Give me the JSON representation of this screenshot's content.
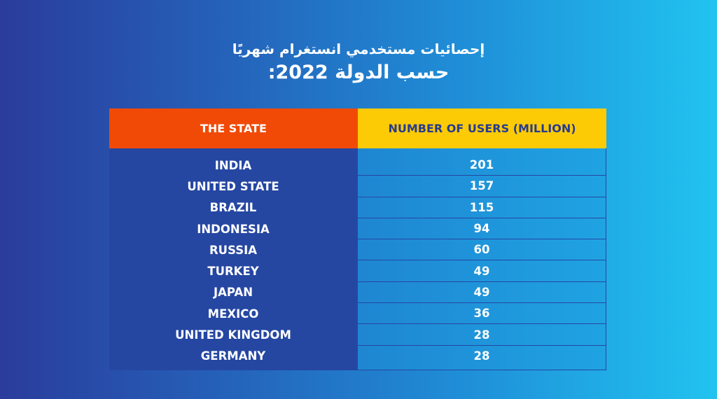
{
  "title": {
    "line1": "إحصائيات مستخدمي انستغرام شهريًا",
    "line2": "حسب الدولة 2022:"
  },
  "colors": {
    "header_left": "#f04a06",
    "header_right": "#fccb05",
    "left_column": "#2547a2",
    "right_column": "#1f95da"
  },
  "chart_data": {
    "type": "table",
    "columns": [
      "THE STATE",
      "NUMBER OF USERS (MILLION)"
    ],
    "rows": [
      [
        "INDIA",
        201
      ],
      [
        "UNITED STATE",
        157
      ],
      [
        "BRAZIL",
        115
      ],
      [
        "INDONESIA",
        94
      ],
      [
        "RUSSIA",
        60
      ],
      [
        "TURKEY",
        49
      ],
      [
        "JAPAN",
        49
      ],
      [
        "MEXICO",
        36
      ],
      [
        "UNITED KINGDOM",
        28
      ],
      [
        "GERMANY",
        28
      ]
    ]
  }
}
